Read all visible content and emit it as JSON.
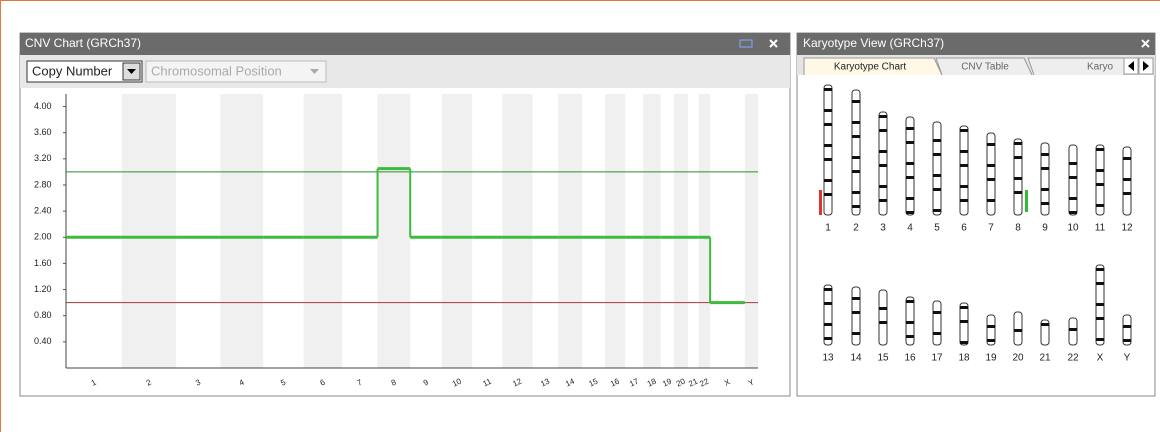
{
  "cnv_panel": {
    "title": "CNV Chart (GRCh37)",
    "dropdowns": [
      "Copy Number",
      "Chromosomal Position"
    ]
  },
  "chart_data": {
    "type": "line",
    "categories": [
      "1",
      "2",
      "3",
      "4",
      "5",
      "6",
      "7",
      "8",
      "9",
      "10",
      "11",
      "12",
      "13",
      "14",
      "15",
      "16",
      "17",
      "18",
      "19",
      "20",
      "21",
      "22",
      "X",
      "Y"
    ],
    "series": [
      {
        "name": "Copy Number",
        "color": "#3dbb3d",
        "values": [
          2.0,
          2.0,
          2.0,
          2.0,
          2.0,
          2.0,
          2.0,
          3.05,
          2.0,
          2.0,
          2.0,
          2.0,
          2.0,
          2.0,
          2.0,
          2.0,
          2.0,
          2.0,
          2.0,
          2.0,
          2.0,
          2.0,
          1.0,
          null
        ]
      }
    ],
    "ylim": [
      0,
      4.1
    ],
    "yticks": [
      {
        "value": 0.4,
        "label": "0.40"
      },
      {
        "value": 0.8,
        "label": "0.80"
      },
      {
        "value": 1.2,
        "label": "1.20"
      },
      {
        "value": 1.6,
        "label": "1.60"
      },
      {
        "value": 2,
        "label": "2.00"
      },
      {
        "value": 2.4,
        "label": "2.40"
      },
      {
        "value": 2.8,
        "label": "2.80"
      },
      {
        "value": 3.2,
        "label": "3.20"
      },
      {
        "value": 3.6,
        "label": "3.60"
      },
      {
        "value": 4,
        "label": "4.00"
      }
    ],
    "reference_lines": [
      {
        "value": 3,
        "color": "#2e8b2e"
      },
      {
        "value": 1,
        "color": "#a33a3a"
      }
    ]
  },
  "karyotype_panel": {
    "title": "Karyotype View (GRCh37)",
    "tabs": [
      "Karyotype Chart",
      "CNV Table",
      "Karyo"
    ],
    "chromosomes": [
      "1",
      "2",
      "3",
      "4",
      "5",
      "6",
      "7",
      "8",
      "9",
      "10",
      "11",
      "12",
      "13",
      "14",
      "15",
      "16",
      "17",
      "18",
      "19",
      "20",
      "21",
      "22",
      "X",
      "Y"
    ]
  }
}
